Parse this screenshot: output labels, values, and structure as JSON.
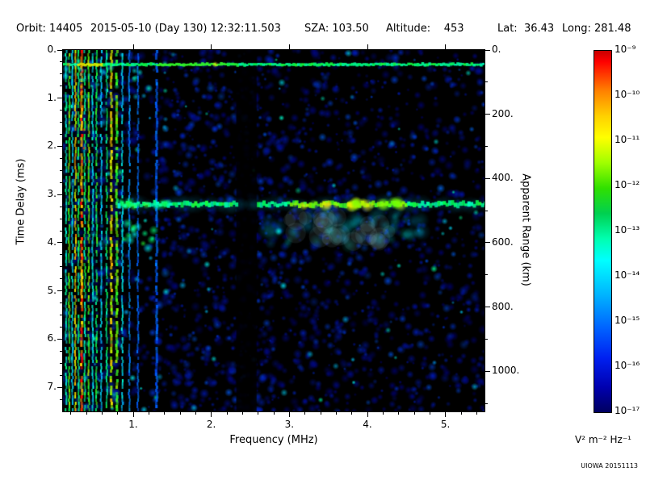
{
  "header": {
    "orbit": "Orbit: 14405",
    "datetime": "2015-05-10 (Day 130) 12:32:11.503",
    "sza": "SZA: 103.50",
    "altitude": "Altitude:    453",
    "lat": "Lat:  36.43",
    "long": "Long: 281.48"
  },
  "chart_data": {
    "type": "heatmap",
    "title": "",
    "xlabel": "Frequency (MHz)",
    "ylabel_left": "Time Delay (ms)",
    "ylabel_right": "Apparent Range (km)",
    "x_range_mhz": [
      0.1,
      5.5
    ],
    "x_major_ticks": [
      1,
      2,
      3,
      4,
      5
    ],
    "x_major_labels": [
      "1.",
      "2.",
      "3.",
      "4.",
      "5."
    ],
    "x_minor_step": 0.2,
    "y_left_range_ms": [
      0,
      7.5
    ],
    "y_left_major_ticks": [
      0,
      1,
      2,
      3,
      4,
      5,
      6,
      7
    ],
    "y_left_major_labels": [
      "0.",
      "1.",
      "2.",
      "3.",
      "4.",
      "5.",
      "6.",
      "7."
    ],
    "y_left_minor_step": 0.25,
    "y_right_range_km": [
      0,
      1125
    ],
    "y_right_major_ticks": [
      0,
      200,
      400,
      600,
      800,
      1000
    ],
    "y_right_major_labels": [
      "0.",
      "200.",
      "400.",
      "600.",
      "800.",
      "1000."
    ],
    "y_right_minor_step": 100,
    "colorbar": {
      "scale": "log",
      "range_min": "1e-17",
      "range_max": "1e-9",
      "tick_labels": [
        "10⁻⁹",
        "10⁻¹⁰",
        "10⁻¹¹",
        "10⁻¹²",
        "10⁻¹³",
        "10⁻¹⁴",
        "10⁻¹⁵",
        "10⁻¹⁶",
        "10⁻¹⁷"
      ],
      "unit": "V² m⁻² Hz⁻¹",
      "gradient": [
        [
          "#c80000",
          0
        ],
        [
          "#ff0000",
          0.03
        ],
        [
          "#ff8000",
          0.11
        ],
        [
          "#ffd000",
          0.18
        ],
        [
          "#ffff00",
          0.24
        ],
        [
          "#a0ff00",
          0.31
        ],
        [
          "#30e000",
          0.38
        ],
        [
          "#00d050",
          0.45
        ],
        [
          "#00ffb0",
          0.52
        ],
        [
          "#00ffff",
          0.58
        ],
        [
          "#00b0ff",
          0.68
        ],
        [
          "#0060ff",
          0.77
        ],
        [
          "#0020f0",
          0.85
        ],
        [
          "#0000b0",
          0.93
        ],
        [
          "#000060",
          1
        ]
      ]
    },
    "colormap": [
      [
        0,
        "#000008"
      ],
      [
        0.12,
        "#000070"
      ],
      [
        0.28,
        "#0020c8"
      ],
      [
        0.42,
        "#0066ff"
      ],
      [
        0.54,
        "#00b4ff"
      ],
      [
        0.64,
        "#00ffee"
      ],
      [
        0.74,
        "#00ff55"
      ],
      [
        0.82,
        "#66ff00"
      ],
      [
        0.9,
        "#ffee00"
      ],
      [
        0.96,
        "#ff8800"
      ],
      [
        1,
        "#ff0000"
      ]
    ],
    "features": {
      "surface_echo": {
        "time_delay_ms": 0.3,
        "freq_start_mhz": 0.1,
        "freq_end_mhz": 5.5
      },
      "ionosphere_echo": {
        "time_delay_ms": 3.2,
        "freq_start_mhz": 0.8,
        "freq_end_mhz": 5.5
      },
      "diffuse_echo": {
        "time_delay_ms": 3.55,
        "freq_start_mhz": 2.7,
        "freq_end_mhz": 4.7
      },
      "absorption_gap_mhz": [
        2.32,
        2.58
      ],
      "harmonic_stripes": [
        [
          0.14,
          0.66,
          2
        ],
        [
          0.18,
          0.8,
          2
        ],
        [
          0.22,
          0.6,
          2
        ],
        [
          0.26,
          0.9,
          2
        ],
        [
          0.3,
          0.72,
          2
        ],
        [
          0.34,
          0.95,
          3
        ],
        [
          0.38,
          0.7,
          2
        ],
        [
          0.43,
          0.82,
          2
        ],
        [
          0.48,
          0.62,
          2
        ],
        [
          0.53,
          0.75,
          2
        ],
        [
          0.59,
          0.58,
          2
        ],
        [
          0.66,
          0.72,
          2
        ],
        [
          0.72,
          0.88,
          3
        ],
        [
          0.79,
          0.8,
          3
        ],
        [
          0.86,
          0.6,
          2
        ],
        [
          0.95,
          0.48,
          2
        ],
        [
          1.06,
          0.42,
          2
        ],
        [
          1.3,
          0.4,
          3
        ]
      ]
    }
  },
  "credit": "UIOWA 20151113"
}
